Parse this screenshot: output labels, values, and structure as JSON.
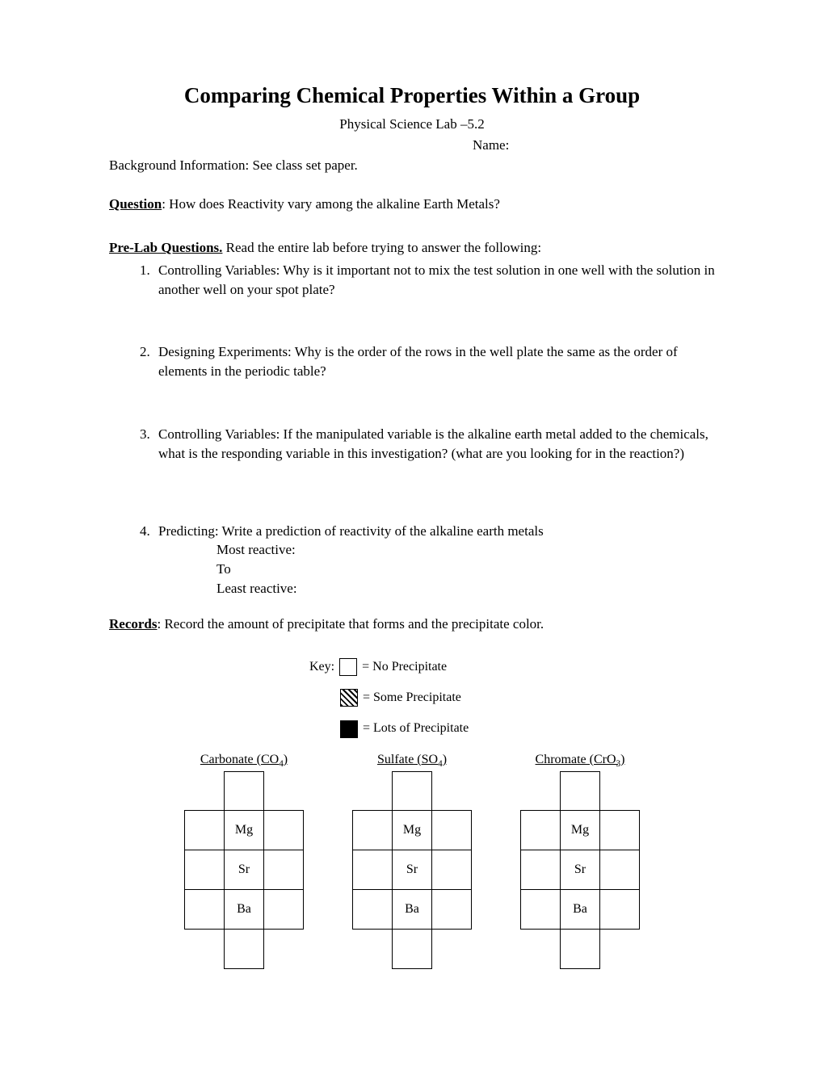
{
  "title": "Comparing Chemical Properties Within a Group",
  "subtitle": "Physical Science Lab –5.2",
  "name_label": "Name:",
  "background": "Background Information:  See class set paper.",
  "question_label": "Question",
  "question_text": ":  How does Reactivity vary among the alkaline Earth Metals?",
  "prelab_label": "Pre-Lab Questions.",
  "prelab_intro": " Read the entire lab before trying to answer the following:",
  "q1": "Controlling Variables:  Why is it  important not to mix the test solution in one well with the solution in another well on your spot plate?",
  "q2": "Designing Experiments:  Why is the order of the rows in the well plate the same as the order of elements in the periodic table?",
  "q3": "Controlling Variables:  If the manipulated variable is the alkaline earth metal added to the chemicals, what is the responding variable in this investigation? (what are you looking for in the reaction?)",
  "q4": "Predicting:  Write a prediction of  reactivity of the alkaline earth metals",
  "q4_most": "Most reactive:",
  "q4_to": "To",
  "q4_least": "Least reactive:",
  "records_label": "Records",
  "records_text": ":  Record the amount of precipitate that forms and the precipitate color.",
  "key_label": "Key:",
  "key_none": "= No Precipitate",
  "key_some": "= Some Precipitate",
  "key_lots": "= Lots of Precipitate",
  "columns": [
    {
      "header_prefix": "Carbonate (CO",
      "header_sub": "4",
      "header_suffix": ")"
    },
    {
      "header_prefix": "Sulfate (SO",
      "header_sub": "4",
      "header_suffix": ")"
    },
    {
      "header_prefix": "Chromate (CrO",
      "header_sub": "3",
      "header_suffix": ")"
    }
  ],
  "rows": [
    "Mg",
    "Sr",
    "Ba"
  ],
  "colors": {
    "background": "#ffffff",
    "text": "#000000",
    "border": "#000000"
  },
  "fontsize": {
    "title": 27,
    "body": 17,
    "table": 16
  }
}
